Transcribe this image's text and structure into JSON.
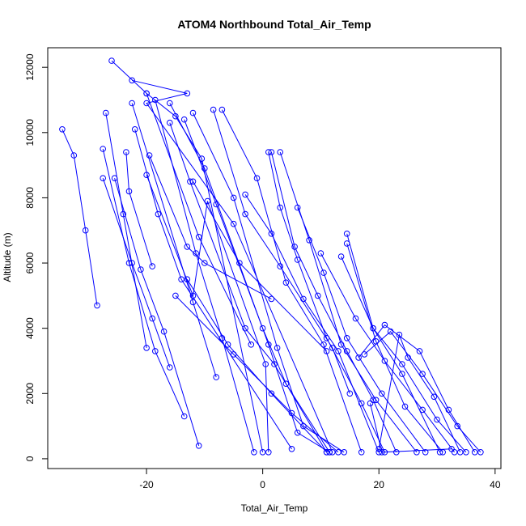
{
  "chart_data": {
    "type": "line",
    "title": "ATOM4 Northbound Total_Air_Temp",
    "xlabel": "Total_Air_Temp",
    "ylabel": "Altitude (m)",
    "xlim": [
      -37,
      41
    ],
    "ylim": [
      -300,
      12600
    ],
    "xticks": [
      -20,
      0,
      20,
      40
    ],
    "yticks": [
      0,
      2000,
      4000,
      6000,
      8000,
      10000,
      12000
    ],
    "color": "#0000ff",
    "series": [
      {
        "x": [
          -34.5,
          -32.5,
          -30.5,
          -28.5
        ],
        "y": [
          10100,
          9300,
          7000,
          4700
        ]
      },
      {
        "x": [
          -27,
          -24,
          -20
        ],
        "y": [
          10600,
          7500,
          3400
        ]
      },
      {
        "x": [
          -27.5,
          -23,
          -18.5,
          -13.5
        ],
        "y": [
          9500,
          6000,
          3300,
          1300
        ]
      },
      {
        "x": [
          -27.5,
          -22.5,
          -19,
          -16
        ],
        "y": [
          8600,
          6000,
          4300,
          2800
        ]
      },
      {
        "x": [
          -25.5,
          -21,
          -17,
          -11
        ],
        "y": [
          8600,
          5800,
          3900,
          400
        ]
      },
      {
        "x": [
          -26,
          -20,
          -15,
          -10.5,
          0
        ],
        "y": [
          12200,
          11200,
          10500,
          9200,
          200
        ]
      },
      {
        "x": [
          -22.5,
          -13,
          -20,
          -5,
          12
        ],
        "y": [
          11600,
          11200,
          10900,
          7200,
          200
        ]
      },
      {
        "x": [
          -20,
          -11,
          -2
        ],
        "y": [
          11200,
          6800,
          3500
        ]
      },
      {
        "x": [
          -22.5,
          -12,
          -8
        ],
        "y": [
          10900,
          4800,
          2500
        ]
      },
      {
        "x": [
          -22,
          -18,
          -14,
          5
        ],
        "y": [
          10100,
          7500,
          5500,
          300
        ]
      },
      {
        "x": [
          -23.5,
          -23,
          -19
        ],
        "y": [
          9400,
          8200,
          5900
        ]
      },
      {
        "x": [
          -19.5,
          -13,
          -10,
          1.5
        ],
        "y": [
          9300,
          6500,
          6000,
          4900
        ]
      },
      {
        "x": [
          -20,
          -12,
          -9.5,
          0.5,
          1
        ],
        "y": [
          8700,
          5000,
          7900,
          2900,
          200
        ]
      },
      {
        "x": [
          -18.5,
          -11.5,
          -7,
          -1.5
        ],
        "y": [
          11000,
          6300,
          3700,
          200
        ]
      },
      {
        "x": [
          -16,
          -12.5,
          -3,
          2,
          11
        ],
        "y": [
          10300,
          8500,
          4000,
          2900,
          200
        ]
      },
      {
        "x": [
          -16,
          -10,
          1,
          6,
          11.5
        ],
        "y": [
          10900,
          8900,
          3500,
          800,
          200
        ]
      },
      {
        "x": [
          -13.5,
          -8,
          0,
          4,
          11.5
        ],
        "y": [
          10400,
          7800,
          4000,
          2300,
          200
        ]
      },
      {
        "x": [
          -12,
          -5,
          2.5,
          7,
          14
        ],
        "y": [
          10600,
          8000,
          3400,
          1000,
          200
        ]
      },
      {
        "x": [
          -12,
          -4,
          11
        ],
        "y": [
          8500,
          6000,
          3300
        ]
      },
      {
        "x": [
          -13,
          -6,
          1.5,
          11
        ],
        "y": [
          5500,
          3500,
          2000,
          200
        ]
      },
      {
        "x": [
          -15,
          -5,
          5,
          13
        ],
        "y": [
          5000,
          3200,
          1400,
          200
        ]
      },
      {
        "x": [
          -8.5,
          -3,
          3,
          12,
          15
        ],
        "y": [
          10700,
          7500,
          5900,
          3400,
          2000
        ]
      },
      {
        "x": [
          -7,
          -1,
          4,
          10.5,
          17
        ],
        "y": [
          10700,
          8600,
          5400,
          3500,
          200
        ]
      },
      {
        "x": [
          -3,
          1.5,
          7,
          13,
          20
        ],
        "y": [
          8100,
          6900,
          4900,
          3300,
          200
        ]
      },
      {
        "x": [
          1,
          3,
          6,
          11,
          17,
          21
        ],
        "y": [
          9400,
          7700,
          6100,
          3700,
          1700,
          200
        ]
      },
      {
        "x": [
          1.5,
          5.5,
          9.5,
          14.5,
          19,
          23
        ],
        "y": [
          9400,
          6500,
          5000,
          3300,
          1800,
          200
        ]
      },
      {
        "x": [
          3,
          8,
          13.5,
          19.5,
          26.5
        ],
        "y": [
          9400,
          6700,
          3500,
          1800,
          200
        ]
      },
      {
        "x": [
          6,
          10.5,
          14.5,
          20.5,
          28
        ],
        "y": [
          7700,
          5700,
          3700,
          2000,
          200
        ]
      },
      {
        "x": [
          14.5,
          19,
          24,
          30.5
        ],
        "y": [
          6900,
          4000,
          2600,
          200
        ]
      },
      {
        "x": [
          14.5,
          19.5,
          24.5,
          31
        ],
        "y": [
          6600,
          3600,
          1600,
          200
        ]
      },
      {
        "x": [
          10,
          16,
          21,
          27.5,
          33
        ],
        "y": [
          6300,
          4300,
          3000,
          1500,
          200
        ]
      },
      {
        "x": [
          13.5,
          19,
          24,
          30,
          35
        ],
        "y": [
          6200,
          4000,
          2900,
          1200,
          200
        ]
      },
      {
        "x": [
          16.5,
          21,
          27,
          32,
          36.5
        ],
        "y": [
          3100,
          4100,
          3300,
          1500,
          200
        ]
      },
      {
        "x": [
          17.5,
          22,
          27.5,
          33.5,
          37.5
        ],
        "y": [
          3200,
          3900,
          2600,
          1000,
          200
        ]
      },
      {
        "x": [
          20,
          23.5,
          25,
          29.5,
          34
        ],
        "y": [
          300,
          3800,
          3100,
          1900,
          200
        ]
      },
      {
        "x": [
          18.5,
          20.5,
          32.5
        ],
        "y": [
          1700,
          200,
          300
        ]
      }
    ]
  }
}
